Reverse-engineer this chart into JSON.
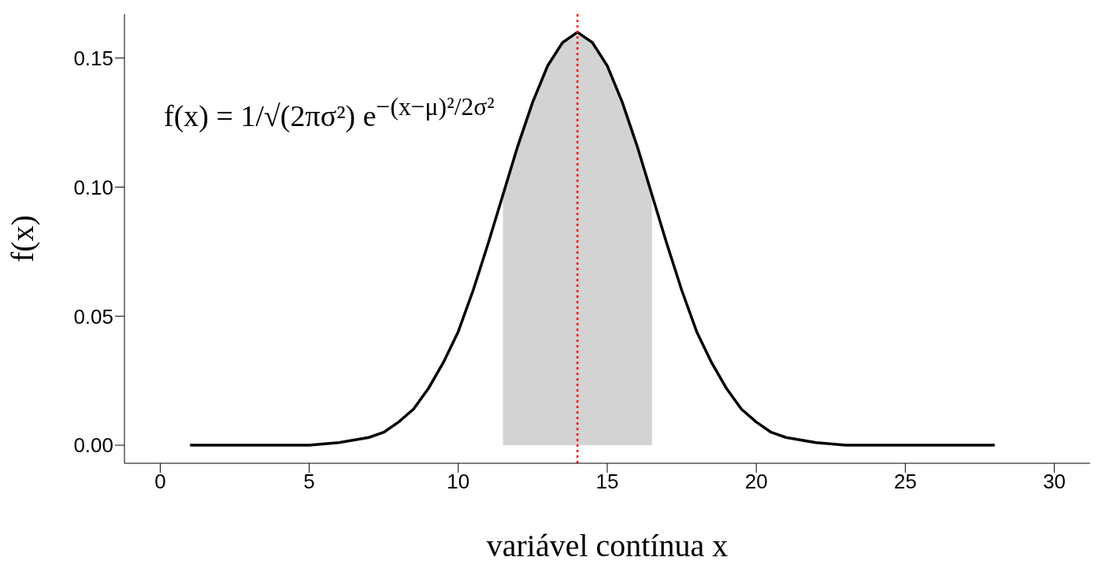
{
  "chart_data": {
    "type": "line",
    "xlabel": "variável contínua x",
    "ylabel": "f(x)",
    "annotations": [
      "f(x) = 1/√(2πσ²) e$^{−(x−μ)²/2σ²}$"
    ],
    "series": [
      {
        "type": "area",
        "color": "#d3d3d3",
        "x": [
          11.5,
          12,
          12.5,
          13,
          13.5,
          14,
          14.5,
          15,
          15.5,
          16,
          16.5
        ],
        "values": [
          0.097,
          0.116,
          0.133,
          0.147,
          0.156,
          0.16,
          0.156,
          0.147,
          0.133,
          0.116,
          0.097
        ]
      },
      {
        "color": "#000000",
        "x": [
          1,
          2,
          3,
          4,
          5,
          6,
          7,
          7.5,
          8,
          8.5,
          9,
          9.5,
          10,
          10.5,
          11,
          11.5,
          12,
          12.5,
          13,
          13.5,
          14,
          14.5,
          15,
          15.5,
          16,
          16.5,
          17,
          17.5,
          18,
          18.5,
          19,
          19.5,
          20,
          20.5,
          21,
          22,
          23,
          24,
          25,
          26,
          27,
          28
        ],
        "values": [
          0,
          0,
          0,
          0,
          0,
          0.001,
          0.003,
          0.005,
          0.009,
          0.014,
          0.022,
          0.032,
          0.044,
          0.06,
          0.078,
          0.097,
          0.116,
          0.133,
          0.147,
          0.156,
          0.16,
          0.156,
          0.147,
          0.133,
          0.116,
          0.097,
          0.078,
          0.06,
          0.044,
          0.032,
          0.022,
          0.014,
          0.009,
          0.005,
          0.003,
          0.001,
          0,
          0,
          0,
          0,
          0,
          0
        ]
      }
    ],
    "marker": "none",
    "ref_lines": [
      {
        "axis": "x",
        "value": 14,
        "color": "#ff0000",
        "line_style": "dotted"
      }
    ],
    "xlim": [
      -1.2,
      31.2
    ],
    "xticks": [
      0,
      5,
      10,
      15,
      20,
      25,
      30
    ],
    "ylim": [
      -0.007,
      0.167
    ],
    "yticks": [
      {
        "value": 0,
        "label": "0.00"
      },
      {
        "value": 0.05,
        "label": "0.05"
      },
      {
        "value": 0.1,
        "label": "0.10"
      },
      {
        "value": 0.15,
        "label": "0.15"
      }
    ]
  }
}
